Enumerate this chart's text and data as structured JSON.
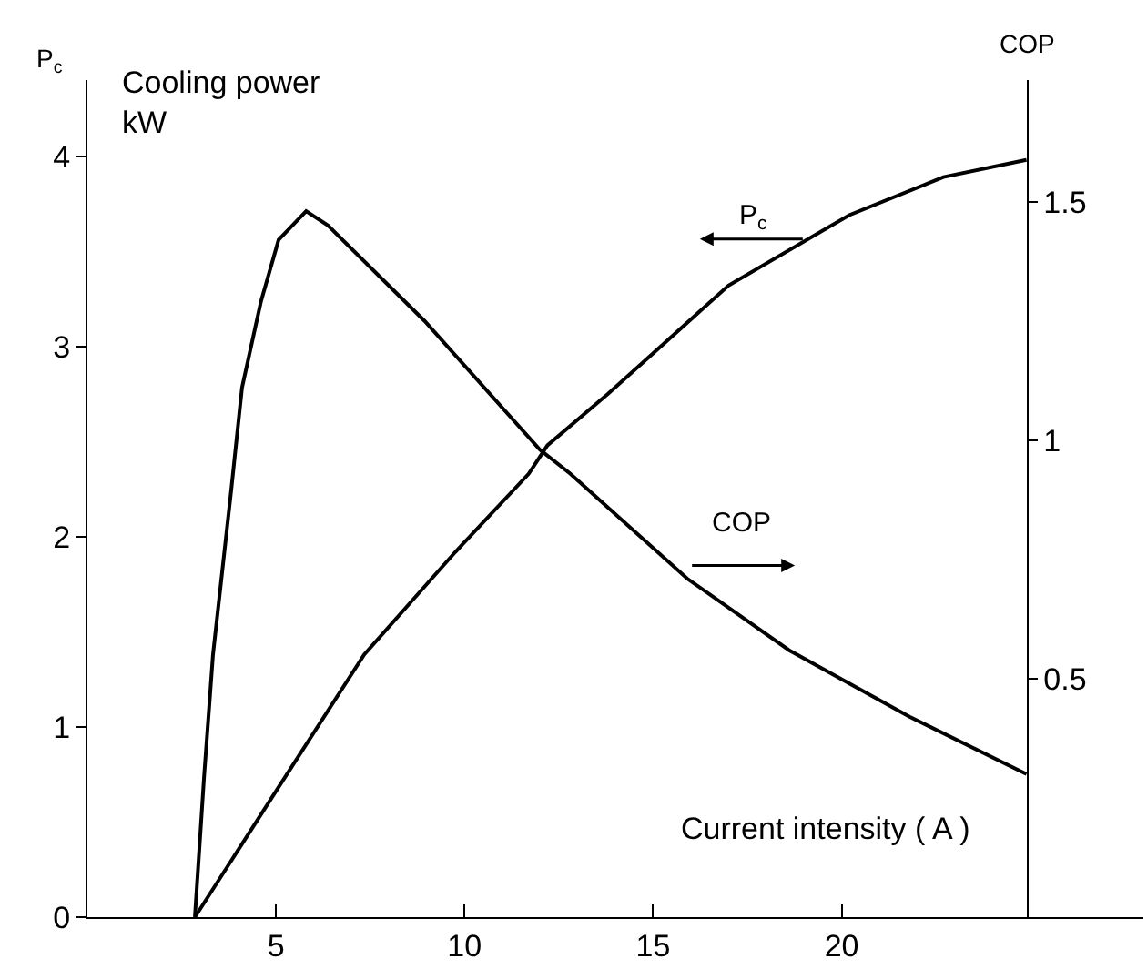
{
  "chart_data": {
    "type": "line",
    "xlabel": "Current intensity ( A )",
    "ylabel": "P$_{c}$",
    "y2label": "COP",
    "annotations": [
      "Cooling power\nkW"
    ],
    "series": [
      {
        "name": "P$_{c}$",
        "color": "#000000",
        "x": [
          2.85,
          4.93,
          7.34,
          9.76,
          11.7,
          12.2,
          13.8,
          17.0,
          20.2,
          22.7,
          24.9
        ],
        "values": [
          0,
          0.64,
          1.38,
          1.92,
          2.33,
          2.48,
          2.75,
          3.32,
          3.69,
          3.89,
          3.98
        ]
      },
      {
        "name": "COP",
        "color": "#000000",
        "axis": "y2",
        "x": [
          2.85,
          3.09,
          3.33,
          3.82,
          4.1,
          4.6,
          5.07,
          5.8,
          6.38,
          8.94,
          12.0,
          12.8,
          15.9,
          18.6,
          21.8,
          24.9
        ],
        "values": [
          0,
          0.29,
          0.55,
          0.9,
          1.11,
          1.29,
          1.42,
          1.48,
          1.45,
          1.25,
          0.98,
          0.93,
          0.71,
          0.56,
          0.42,
          0.3
        ]
      }
    ],
    "xlim": [
      0,
      28
    ],
    "xticks": [
      5,
      10,
      15,
      20
    ],
    "ylim": [
      0,
      4.4
    ],
    "yticks": [
      0,
      1,
      2,
      3,
      4
    ],
    "y2lim": [
      0,
      1.755
    ],
    "y2ticks": [
      0.5,
      1,
      1.5
    ],
    "legend": false,
    "marker": "none",
    "line_style": "solid"
  }
}
